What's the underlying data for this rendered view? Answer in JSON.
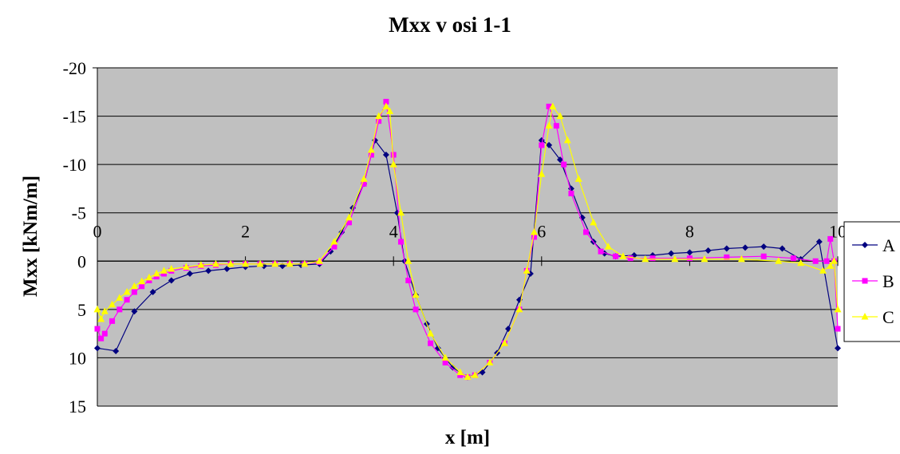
{
  "chart_data": {
    "type": "line",
    "title": "Mxx v osi 1-1",
    "xlabel": "x [m]",
    "ylabel": "Mxx [kNm/m]",
    "xlim": [
      0,
      10
    ],
    "ylim": [
      -20,
      15
    ],
    "y_inverted": true,
    "plot_background": "#c0c0c0",
    "grid": true,
    "x_ticks": [
      0,
      2,
      4,
      6,
      8,
      10
    ],
    "y_ticks": [
      -20,
      -15,
      -10,
      -5,
      0,
      5,
      10,
      15
    ],
    "y_tick_labels": [
      "-20",
      "-15",
      "-10",
      "-5",
      "0",
      "5",
      "10",
      "15"
    ],
    "x_tick_labels": [
      "0",
      "2",
      "4",
      "6",
      "8",
      "10"
    ],
    "legend_position": "right",
    "series": [
      {
        "name": "A",
        "color": "#000080",
        "marker": "diamond",
        "x": [
          0,
          0.25,
          0.5,
          0.75,
          1.0,
          1.25,
          1.5,
          1.75,
          2.0,
          2.25,
          2.5,
          2.75,
          3.0,
          3.15,
          3.3,
          3.45,
          3.6,
          3.75,
          3.9,
          4.05,
          4.15,
          4.3,
          4.45,
          4.6,
          4.8,
          5.0,
          5.2,
          5.4,
          5.55,
          5.7,
          5.85,
          6.0,
          6.1,
          6.25,
          6.4,
          6.55,
          6.7,
          6.85,
          7.0,
          7.25,
          7.5,
          7.75,
          8.0,
          8.25,
          8.5,
          8.75,
          9.0,
          9.25,
          9.5,
          9.75,
          10.0
        ],
        "y": [
          9,
          9.3,
          5.2,
          3.2,
          2,
          1.3,
          1,
          0.8,
          0.6,
          0.5,
          0.5,
          0.4,
          0.3,
          -1,
          -3,
          -5.5,
          -8,
          -12.5,
          -11,
          -5,
          0,
          3.5,
          6.5,
          9,
          11,
          12,
          11.5,
          9.5,
          7,
          4,
          1.3,
          -12.5,
          -12,
          -10.5,
          -7.5,
          -4.5,
          -2,
          -0.8,
          -0.5,
          -0.6,
          -0.6,
          -0.8,
          -0.9,
          -1.1,
          -1.3,
          -1.4,
          -1.5,
          -1.3,
          -0.2,
          -2,
          9
        ]
      },
      {
        "name": "B",
        "color": "#ff00ff",
        "marker": "square",
        "x": [
          0,
          0.05,
          0.1,
          0.2,
          0.3,
          0.4,
          0.5,
          0.6,
          0.7,
          0.8,
          0.9,
          1.0,
          1.2,
          1.4,
          1.6,
          1.8,
          2.0,
          2.2,
          2.4,
          2.6,
          2.8,
          3.0,
          3.2,
          3.4,
          3.6,
          3.7,
          3.8,
          3.9,
          4.0,
          4.1,
          4.2,
          4.3,
          4.5,
          4.7,
          4.9,
          5.0,
          5.1,
          5.3,
          5.5,
          5.7,
          5.8,
          5.9,
          6.0,
          6.1,
          6.2,
          6.3,
          6.4,
          6.6,
          6.8,
          7.0,
          7.2,
          7.5,
          8.0,
          8.5,
          9.0,
          9.4,
          9.7,
          9.85,
          9.9,
          9.95,
          10.0
        ],
        "y": [
          7,
          8,
          7.5,
          6.2,
          5,
          4,
          3.2,
          2.6,
          2,
          1.6,
          1.3,
          1.0,
          0.7,
          0.5,
          0.4,
          0.3,
          0.3,
          0.3,
          0.3,
          0.3,
          0.3,
          0.1,
          -1.5,
          -4,
          -8,
          -11,
          -14.5,
          -16.5,
          -11,
          -2,
          2,
          5,
          8.5,
          10.5,
          11.8,
          12,
          11.8,
          10.5,
          8.5,
          5,
          1,
          -2.5,
          -12,
          -16,
          -14,
          -10,
          -7,
          -3,
          -1,
          -0.5,
          -0.3,
          -0.3,
          -0.3,
          -0.4,
          -0.5,
          -0.3,
          0,
          0,
          -2.3,
          0,
          7
        ]
      },
      {
        "name": "C",
        "color": "#ffff00",
        "marker": "triangle",
        "x": [
          0,
          0.05,
          0.1,
          0.2,
          0.3,
          0.4,
          0.5,
          0.6,
          0.7,
          0.8,
          0.9,
          1.0,
          1.2,
          1.4,
          1.6,
          1.8,
          2.0,
          2.2,
          2.4,
          2.6,
          2.8,
          3.0,
          3.2,
          3.4,
          3.6,
          3.7,
          3.8,
          3.9,
          3.95,
          4.0,
          4.1,
          4.2,
          4.3,
          4.5,
          4.7,
          4.9,
          5.0,
          5.1,
          5.3,
          5.5,
          5.7,
          5.8,
          5.9,
          6.0,
          6.1,
          6.15,
          6.25,
          6.35,
          6.5,
          6.7,
          6.9,
          7.1,
          7.4,
          7.8,
          8.2,
          8.7,
          9.2,
          9.5,
          9.8,
          9.9,
          9.95,
          10.0
        ],
        "y": [
          5,
          6,
          5.2,
          4.5,
          3.8,
          3.2,
          2.6,
          2.1,
          1.7,
          1.3,
          1.0,
          0.8,
          0.6,
          0.4,
          0.3,
          0.3,
          0.3,
          0.3,
          0.3,
          0.3,
          0.3,
          0,
          -2,
          -4.5,
          -8.5,
          -11.5,
          -15,
          -16,
          -15.5,
          -10,
          -5,
          0,
          3.5,
          7.5,
          10,
          11.5,
          12,
          11.8,
          10.5,
          8.5,
          5,
          1,
          -3,
          -9,
          -14,
          -16,
          -15,
          -12.5,
          -8.5,
          -4,
          -1.5,
          -0.5,
          -0.2,
          -0.2,
          -0.2,
          -0.2,
          0,
          0.2,
          1,
          0.5,
          0,
          5
        ]
      }
    ]
  }
}
